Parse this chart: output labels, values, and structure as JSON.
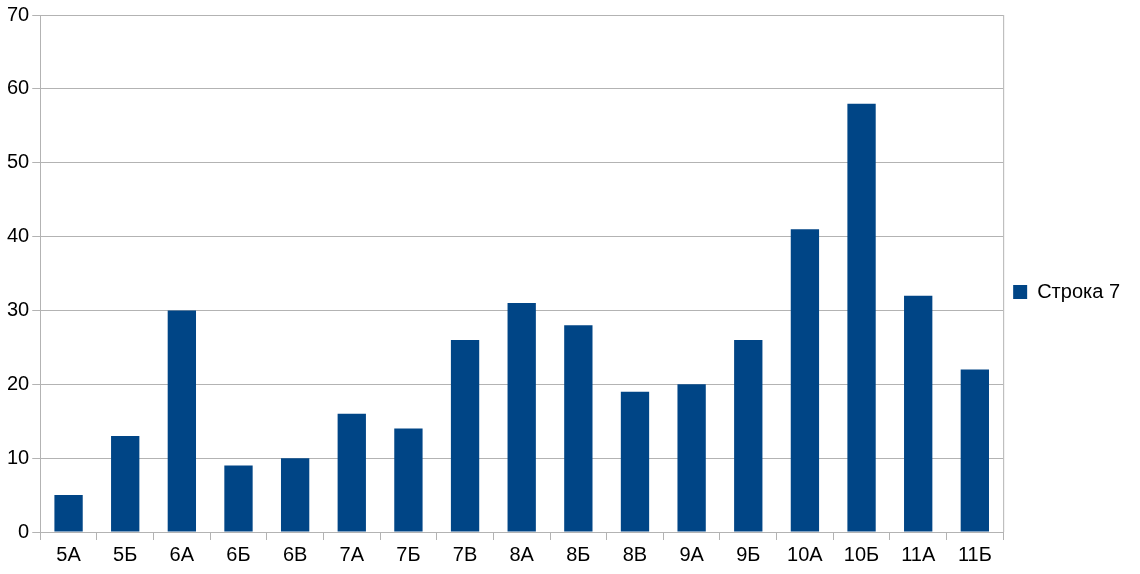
{
  "chart_data": {
    "type": "bar",
    "categories": [
      "5А",
      "5Б",
      "6А",
      "6Б",
      "6В",
      "7А",
      "7Б",
      "7В",
      "8А",
      "8Б",
      "8В",
      "9А",
      "9Б",
      "10А",
      "10Б",
      "11А",
      "11Б"
    ],
    "series": [
      {
        "name": "Строка 7",
        "color": "#004586",
        "values": [
          5,
          13,
          30,
          9,
          10,
          16,
          14,
          26,
          31,
          28,
          19,
          20,
          26,
          41,
          58,
          32,
          22
        ]
      }
    ],
    "ylim": [
      0,
      70
    ],
    "yticks": [
      0,
      10,
      20,
      30,
      40,
      50,
      60,
      70
    ],
    "grid": "y",
    "legend": "right"
  }
}
